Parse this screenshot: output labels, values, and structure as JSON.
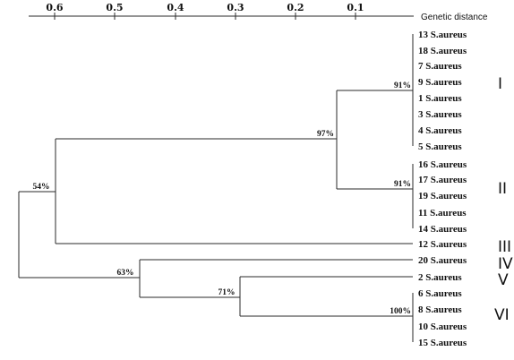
{
  "axis": {
    "title": "Genetic distance",
    "ticks": [
      "0.6",
      "0.5",
      "0.4",
      "0.3",
      "0.2",
      "0.1"
    ]
  },
  "leaves": [
    "13 S.aureus",
    "18 S.aureus",
    "7 S.aureus",
    "9 S.aureus",
    "1 S.aureus",
    "3 S.aureus",
    "4 S.aureus",
    "5 S.aureus",
    "16 S.aureus",
    "17 S.aureus",
    "19 S.aureus",
    "11 S.aureus",
    "14 S.aureus",
    "12 S.aureus",
    "20 S.aureus",
    "2 S.aureus",
    "6 S.aureus",
    "8 S.aureus",
    "10 S.aureus",
    "15 S.aureus"
  ],
  "support": {
    "cluster_I": "91%",
    "cluster_II": "91%",
    "node_I_II": "97%",
    "root": "54%",
    "node_IV_V_VI": "63%",
    "node_V_VI": "71%",
    "cluster_VI": "100%"
  },
  "clusters": [
    "I",
    "II",
    "III",
    "IV",
    "V",
    "VI"
  ]
}
